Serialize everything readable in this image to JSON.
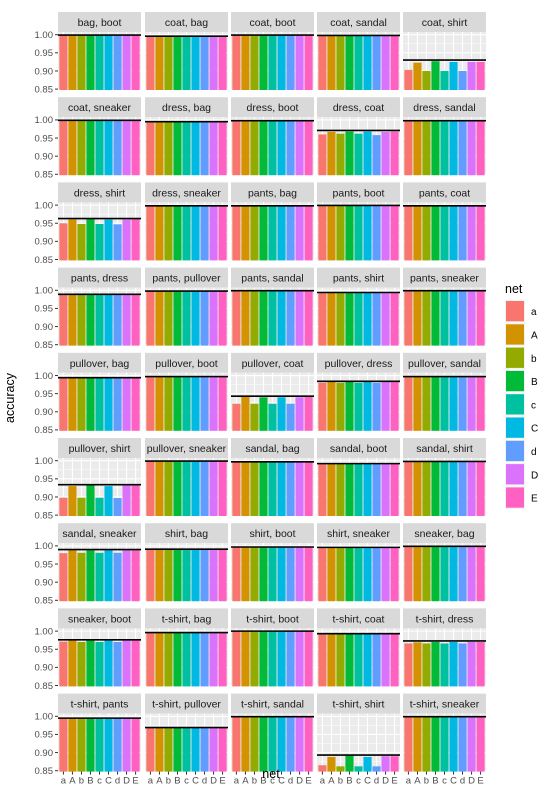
{
  "chart_data": {
    "type": "bar",
    "facet_layout": "wrap",
    "ylabel": "accuracy",
    "xlabel": "net",
    "ylim": [
      0.85,
      1.0
    ],
    "yticks": [
      "0.85",
      "0.90",
      "0.95",
      "1.00"
    ],
    "categories": [
      "a",
      "A",
      "b",
      "B",
      "c",
      "C",
      "d",
      "D",
      "E"
    ],
    "x_tick_labels": [
      "a",
      "A",
      "b",
      "B",
      "c",
      "C",
      "d",
      "D",
      "E"
    ],
    "colors": [
      "#F8766D",
      "#D39200",
      "#93AA00",
      "#00BA38",
      "#00C19F",
      "#00B9E3",
      "#619CFF",
      "#DB72FB",
      "#FF61C3"
    ],
    "legend": {
      "title": "net",
      "entries": [
        "a",
        "A",
        "b",
        "B",
        "c",
        "C",
        "d",
        "D",
        "E"
      ],
      "position": "right"
    },
    "panels": [
      {
        "title": "bag, boot",
        "values": [
          0.998,
          0.998,
          0.998,
          0.998,
          0.998,
          0.998,
          0.998,
          0.998,
          0.998
        ],
        "ref": 0.999
      },
      {
        "title": "coat, bag",
        "values": [
          0.995,
          0.995,
          0.995,
          0.995,
          0.995,
          0.995,
          0.995,
          0.995,
          0.995
        ],
        "ref": 0.996
      },
      {
        "title": "coat, boot",
        "values": [
          0.998,
          0.998,
          0.998,
          0.998,
          0.998,
          0.998,
          0.998,
          0.998,
          0.998
        ],
        "ref": 0.999
      },
      {
        "title": "coat, sandal",
        "values": [
          0.997,
          0.997,
          0.997,
          0.997,
          0.997,
          0.997,
          0.997,
          0.997,
          0.997
        ],
        "ref": 0.998
      },
      {
        "title": "coat, shirt",
        "values": [
          0.903,
          0.923,
          0.9,
          0.927,
          0.9,
          0.925,
          0.9,
          0.925,
          0.925
        ],
        "ref": 0.93
      },
      {
        "title": "coat, sneaker",
        "values": [
          0.998,
          0.998,
          0.998,
          0.998,
          0.998,
          0.998,
          0.998,
          0.998,
          0.998
        ],
        "ref": 0.999
      },
      {
        "title": "dress, bag",
        "values": [
          0.994,
          0.994,
          0.994,
          0.994,
          0.994,
          0.994,
          0.994,
          0.994,
          0.994
        ],
        "ref": 0.995
      },
      {
        "title": "dress, boot",
        "values": [
          0.997,
          0.997,
          0.997,
          0.997,
          0.997,
          0.997,
          0.997,
          0.997,
          0.997
        ],
        "ref": 0.998
      },
      {
        "title": "dress, coat",
        "values": [
          0.96,
          0.967,
          0.962,
          0.968,
          0.962,
          0.968,
          0.958,
          0.967,
          0.968
        ],
        "ref": 0.971
      },
      {
        "title": "dress, sandal",
        "values": [
          0.997,
          0.997,
          0.997,
          0.997,
          0.997,
          0.997,
          0.997,
          0.997,
          0.997
        ],
        "ref": 0.998
      },
      {
        "title": "dress, shirt",
        "values": [
          0.95,
          0.96,
          0.948,
          0.961,
          0.948,
          0.96,
          0.947,
          0.96,
          0.961
        ],
        "ref": 0.963
      },
      {
        "title": "dress, sneaker",
        "values": [
          0.997,
          0.997,
          0.997,
          0.997,
          0.997,
          0.997,
          0.997,
          0.997,
          0.997
        ],
        "ref": 0.998
      },
      {
        "title": "pants, bag",
        "values": [
          0.997,
          0.997,
          0.997,
          0.997,
          0.997,
          0.997,
          0.997,
          0.997,
          0.997
        ],
        "ref": 0.998
      },
      {
        "title": "pants, boot",
        "values": [
          0.998,
          0.998,
          0.998,
          0.998,
          0.998,
          0.998,
          0.998,
          0.998,
          0.998
        ],
        "ref": 0.999
      },
      {
        "title": "pants, coat",
        "values": [
          0.997,
          0.997,
          0.997,
          0.997,
          0.997,
          0.997,
          0.997,
          0.997,
          0.997
        ],
        "ref": 0.998
      },
      {
        "title": "pants, dress",
        "values": [
          0.987,
          0.988,
          0.987,
          0.988,
          0.987,
          0.988,
          0.987,
          0.988,
          0.988
        ],
        "ref": 0.989
      },
      {
        "title": "pants, pullover",
        "values": [
          0.997,
          0.997,
          0.997,
          0.997,
          0.997,
          0.997,
          0.997,
          0.997,
          0.997
        ],
        "ref": 0.998
      },
      {
        "title": "pants, sandal",
        "values": [
          0.998,
          0.998,
          0.998,
          0.998,
          0.998,
          0.998,
          0.998,
          0.998,
          0.998
        ],
        "ref": 0.999
      },
      {
        "title": "pants, shirt",
        "values": [
          0.993,
          0.993,
          0.993,
          0.993,
          0.993,
          0.993,
          0.993,
          0.993,
          0.993
        ],
        "ref": 0.994
      },
      {
        "title": "pants, sneaker",
        "values": [
          0.998,
          0.998,
          0.998,
          0.998,
          0.998,
          0.998,
          0.998,
          0.998,
          0.998
        ],
        "ref": 0.999
      },
      {
        "title": "pullover, bag",
        "values": [
          0.993,
          0.993,
          0.993,
          0.993,
          0.993,
          0.993,
          0.993,
          0.993,
          0.993
        ],
        "ref": 0.994
      },
      {
        "title": "pullover, boot",
        "values": [
          0.996,
          0.996,
          0.996,
          0.996,
          0.996,
          0.996,
          0.996,
          0.996,
          0.996
        ],
        "ref": 0.997
      },
      {
        "title": "pullover, coat",
        "values": [
          0.922,
          0.941,
          0.922,
          0.94,
          0.922,
          0.94,
          0.922,
          0.94,
          0.941
        ],
        "ref": 0.943
      },
      {
        "title": "pullover, dress",
        "values": [
          0.98,
          0.982,
          0.98,
          0.982,
          0.98,
          0.982,
          0.98,
          0.982,
          0.982
        ],
        "ref": 0.984
      },
      {
        "title": "pullover, sandal",
        "values": [
          0.996,
          0.996,
          0.996,
          0.996,
          0.996,
          0.996,
          0.996,
          0.996,
          0.996
        ],
        "ref": 0.997
      },
      {
        "title": "pullover, shirt",
        "values": [
          0.898,
          0.93,
          0.898,
          0.932,
          0.898,
          0.93,
          0.897,
          0.932,
          0.932
        ],
        "ref": 0.934
      },
      {
        "title": "pullover, sneaker",
        "values": [
          0.998,
          0.998,
          0.998,
          0.998,
          0.998,
          0.998,
          0.998,
          0.998,
          0.998
        ],
        "ref": 0.999
      },
      {
        "title": "sandal, bag",
        "values": [
          0.996,
          0.996,
          0.996,
          0.996,
          0.996,
          0.996,
          0.996,
          0.996,
          0.996
        ],
        "ref": 0.997
      },
      {
        "title": "sandal, boot",
        "values": [
          0.991,
          0.991,
          0.991,
          0.991,
          0.991,
          0.991,
          0.991,
          0.991,
          0.991
        ],
        "ref": 0.992
      },
      {
        "title": "sandal, shirt",
        "values": [
          0.997,
          0.997,
          0.997,
          0.997,
          0.997,
          0.997,
          0.997,
          0.997,
          0.997
        ],
        "ref": 0.998
      },
      {
        "title": "sandal, sneaker",
        "values": [
          0.98,
          0.988,
          0.981,
          0.988,
          0.981,
          0.988,
          0.981,
          0.988,
          0.988
        ],
        "ref": 0.99
      },
      {
        "title": "shirt, bag",
        "values": [
          0.99,
          0.99,
          0.99,
          0.99,
          0.99,
          0.99,
          0.99,
          0.99,
          0.99
        ],
        "ref": 0.991
      },
      {
        "title": "shirt, boot",
        "values": [
          0.996,
          0.996,
          0.996,
          0.996,
          0.996,
          0.996,
          0.996,
          0.996,
          0.996
        ],
        "ref": 0.997
      },
      {
        "title": "shirt, sneaker",
        "values": [
          0.995,
          0.995,
          0.995,
          0.995,
          0.995,
          0.995,
          0.995,
          0.995,
          0.995
        ],
        "ref": 0.996
      },
      {
        "title": "sneaker, bag",
        "values": [
          0.998,
          0.998,
          0.998,
          0.998,
          0.998,
          0.998,
          0.998,
          0.998,
          0.998
        ],
        "ref": 0.999
      },
      {
        "title": "sneaker, boot",
        "values": [
          0.971,
          0.974,
          0.97,
          0.974,
          0.97,
          0.974,
          0.97,
          0.974,
          0.974
        ],
        "ref": 0.976
      },
      {
        "title": "t-shirt, bag",
        "values": [
          0.995,
          0.995,
          0.995,
          0.995,
          0.995,
          0.995,
          0.995,
          0.995,
          0.995
        ],
        "ref": 0.996
      },
      {
        "title": "t-shirt, boot",
        "values": [
          0.999,
          0.999,
          0.999,
          0.999,
          0.999,
          0.999,
          0.999,
          0.999,
          0.999
        ],
        "ref": 1.0
      },
      {
        "title": "t-shirt, coat",
        "values": [
          0.992,
          0.992,
          0.992,
          0.992,
          0.992,
          0.992,
          0.992,
          0.992,
          0.992
        ],
        "ref": 0.993
      },
      {
        "title": "t-shirt, dress",
        "values": [
          0.966,
          0.969,
          0.966,
          0.97,
          0.966,
          0.97,
          0.966,
          0.97,
          0.97
        ],
        "ref": 0.973
      },
      {
        "title": "t-shirt, pants",
        "values": [
          0.994,
          0.994,
          0.994,
          0.994,
          0.994,
          0.994,
          0.994,
          0.994,
          0.994
        ],
        "ref": 0.995
      },
      {
        "title": "t-shirt, pullover",
        "values": [
          0.968,
          0.968,
          0.968,
          0.968,
          0.968,
          0.968,
          0.968,
          0.968,
          0.968
        ],
        "ref": 0.969
      },
      {
        "title": "t-shirt, sandal",
        "values": [
          0.998,
          0.998,
          0.998,
          0.998,
          0.998,
          0.998,
          0.998,
          0.998,
          0.998
        ],
        "ref": 0.999
      },
      {
        "title": "t-shirt, shirt",
        "values": [
          0.865,
          0.888,
          0.862,
          0.892,
          0.862,
          0.888,
          0.862,
          0.89,
          0.89
        ],
        "ref": 0.893
      },
      {
        "title": "t-shirt, sneaker",
        "values": [
          0.998,
          0.998,
          0.998,
          0.998,
          0.998,
          0.998,
          0.998,
          0.998,
          0.998
        ],
        "ref": 0.999
      }
    ]
  }
}
